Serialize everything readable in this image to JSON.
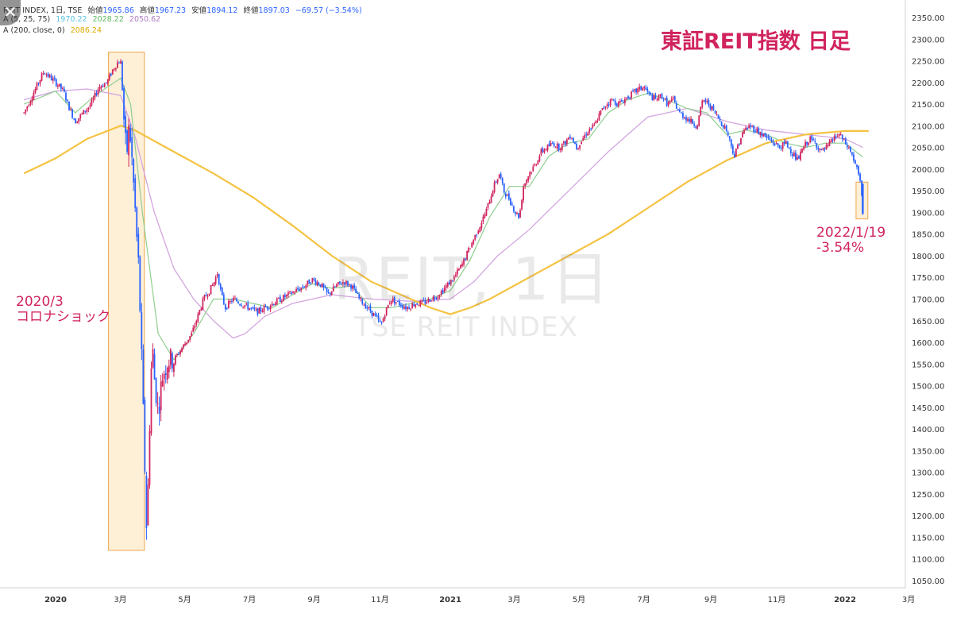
{
  "chart_data": {
    "type": "candlestick",
    "title": "東証REIT指数 日足",
    "ylim": [
      1025,
      2360
    ],
    "legend": {
      "line1": {
        "label": "REIT INDEX, 1日, TSE",
        "open_label": "始値",
        "open": "1965.86",
        "high_label": "高値",
        "high": "1967.23",
        "low_label": "安値",
        "low": "1894.12",
        "close_label": "終値",
        "close": "1897.03",
        "change": "−69.57 (−3.54%)"
      },
      "line2": {
        "label": "A (5, 25, 75)",
        "v1": "1970.22",
        "v2": "2028.22",
        "v3": "2050.62"
      },
      "line3": {
        "label": "A (200, close, 0)",
        "v1": "2086.24"
      }
    },
    "x_ticks": [
      {
        "label": "2020",
        "t": 0.0
      },
      {
        "label": "3月",
        "t": 0.164
      },
      {
        "label": "5月",
        "t": 0.327
      },
      {
        "label": "7月",
        "t": 0.491
      },
      {
        "label": "9月",
        "t": 0.655
      },
      {
        "label": "11月",
        "t": 0.822
      },
      {
        "label": "2021",
        "t": 1.0
      },
      {
        "label": "3月",
        "t": 1.162
      },
      {
        "label": "5月",
        "t": 1.326
      },
      {
        "label": "7月",
        "t": 1.49
      },
      {
        "label": "9月",
        "t": 1.66
      },
      {
        "label": "11月",
        "t": 1.827
      },
      {
        "label": "2022",
        "t": 2.0
      },
      {
        "label": "3月",
        "t": 2.161
      }
    ],
    "y_ticks": [
      1050,
      1100,
      1150,
      1200,
      1250,
      1300,
      1350,
      1400,
      1450,
      1500,
      1550,
      1600,
      1650,
      1700,
      1750,
      1800,
      1850,
      1900,
      1950,
      2000,
      2050,
      2100,
      2150,
      2200,
      2250,
      2300,
      2350
    ],
    "price_path": [
      [
        -0.08,
        2130
      ],
      [
        -0.03,
        2225
      ],
      [
        0.0,
        2200
      ],
      [
        0.02,
        2180
      ],
      [
        0.035,
        2140
      ],
      [
        0.05,
        2110
      ],
      [
        0.07,
        2130
      ],
      [
        0.09,
        2150
      ],
      [
        0.11,
        2190
      ],
      [
        0.13,
        2200
      ],
      [
        0.145,
        2230
      ],
      [
        0.16,
        2250
      ],
      [
        0.165,
        2245
      ],
      [
        0.17,
        2170
      ],
      [
        0.175,
        2080
      ],
      [
        0.18,
        2030
      ],
      [
        0.185,
        2090
      ],
      [
        0.19,
        2070
      ],
      [
        0.195,
        2000
      ],
      [
        0.2,
        1930
      ],
      [
        0.205,
        1850
      ],
      [
        0.21,
        1780
      ],
      [
        0.215,
        1650
      ],
      [
        0.22,
        1500
      ],
      [
        0.225,
        1350
      ],
      [
        0.23,
        1175
      ],
      [
        0.235,
        1280
      ],
      [
        0.24,
        1480
      ],
      [
        0.245,
        1600
      ],
      [
        0.25,
        1520
      ],
      [
        0.26,
        1440
      ],
      [
        0.27,
        1520
      ],
      [
        0.285,
        1560
      ],
      [
        0.3,
        1560
      ],
      [
        0.315,
        1580
      ],
      [
        0.33,
        1600
      ],
      [
        0.345,
        1620
      ],
      [
        0.36,
        1660
      ],
      [
        0.375,
        1700
      ],
      [
        0.39,
        1720
      ],
      [
        0.4,
        1735
      ],
      [
        0.41,
        1760
      ],
      [
        0.42,
        1710
      ],
      [
        0.43,
        1680
      ],
      [
        0.45,
        1700
      ],
      [
        0.47,
        1690
      ],
      [
        0.49,
        1680
      ],
      [
        0.51,
        1670
      ],
      [
        0.53,
        1680
      ],
      [
        0.55,
        1690
      ],
      [
        0.57,
        1700
      ],
      [
        0.59,
        1710
      ],
      [
        0.61,
        1720
      ],
      [
        0.63,
        1730
      ],
      [
        0.65,
        1745
      ],
      [
        0.67,
        1735
      ],
      [
        0.69,
        1710
      ],
      [
        0.71,
        1730
      ],
      [
        0.73,
        1740
      ],
      [
        0.75,
        1730
      ],
      [
        0.77,
        1700
      ],
      [
        0.79,
        1680
      ],
      [
        0.81,
        1660
      ],
      [
        0.825,
        1640
      ],
      [
        0.835,
        1670
      ],
      [
        0.85,
        1700
      ],
      [
        0.87,
        1690
      ],
      [
        0.89,
        1680
      ],
      [
        0.91,
        1690
      ],
      [
        0.93,
        1690
      ],
      [
        0.95,
        1700
      ],
      [
        0.97,
        1710
      ],
      [
        0.99,
        1730
      ],
      [
        1.01,
        1750
      ],
      [
        1.03,
        1780
      ],
      [
        1.05,
        1820
      ],
      [
        1.07,
        1860
      ],
      [
        1.09,
        1900
      ],
      [
        1.11,
        1960
      ],
      [
        1.125,
        1990
      ],
      [
        1.135,
        1950
      ],
      [
        1.15,
        1930
      ],
      [
        1.165,
        1900
      ],
      [
        1.175,
        1890
      ],
      [
        1.185,
        1960
      ],
      [
        1.2,
        1990
      ],
      [
        1.215,
        2010
      ],
      [
        1.23,
        2040
      ],
      [
        1.245,
        2050
      ],
      [
        1.26,
        2060
      ],
      [
        1.275,
        2050
      ],
      [
        1.29,
        2060
      ],
      [
        1.305,
        2080
      ],
      [
        1.32,
        2050
      ],
      [
        1.335,
        2070
      ],
      [
        1.35,
        2090
      ],
      [
        1.365,
        2100
      ],
      [
        1.38,
        2130
      ],
      [
        1.395,
        2150
      ],
      [
        1.41,
        2160
      ],
      [
        1.425,
        2150
      ],
      [
        1.44,
        2160
      ],
      [
        1.455,
        2170
      ],
      [
        1.47,
        2180
      ],
      [
        1.49,
        2190
      ],
      [
        1.505,
        2170
      ],
      [
        1.52,
        2160
      ],
      [
        1.535,
        2170
      ],
      [
        1.55,
        2150
      ],
      [
        1.565,
        2160
      ],
      [
        1.58,
        2130
      ],
      [
        1.595,
        2120
      ],
      [
        1.61,
        2110
      ],
      [
        1.625,
        2100
      ],
      [
        1.64,
        2160
      ],
      [
        1.655,
        2150
      ],
      [
        1.67,
        2130
      ],
      [
        1.685,
        2110
      ],
      [
        1.7,
        2090
      ],
      [
        1.71,
        2060
      ],
      [
        1.72,
        2030
      ],
      [
        1.73,
        2060
      ],
      [
        1.745,
        2090
      ],
      [
        1.76,
        2100
      ],
      [
        1.775,
        2090
      ],
      [
        1.79,
        2080
      ],
      [
        1.805,
        2070
      ],
      [
        1.82,
        2060
      ],
      [
        1.835,
        2050
      ],
      [
        1.85,
        2060
      ],
      [
        1.865,
        2040
      ],
      [
        1.88,
        2020
      ],
      [
        1.895,
        2050
      ],
      [
        1.91,
        2070
      ],
      [
        1.925,
        2060
      ],
      [
        1.94,
        2040
      ],
      [
        1.955,
        2050
      ],
      [
        1.97,
        2070
      ],
      [
        1.985,
        2080
      ],
      [
        2.0,
        2060
      ],
      [
        2.015,
        2040
      ],
      [
        2.03,
        2000
      ],
      [
        2.04,
        1966
      ],
      [
        2.045,
        1897
      ]
    ],
    "sma_200": [
      [
        -0.08,
        1990
      ],
      [
        0.0,
        2025
      ],
      [
        0.08,
        2070
      ],
      [
        0.165,
        2100
      ],
      [
        0.2,
        2090
      ],
      [
        0.3,
        2040
      ],
      [
        0.4,
        1990
      ],
      [
        0.5,
        1935
      ],
      [
        0.6,
        1870
      ],
      [
        0.7,
        1800
      ],
      [
        0.8,
        1740
      ],
      [
        0.9,
        1700
      ],
      [
        0.95,
        1680
      ],
      [
        1.0,
        1665
      ],
      [
        1.05,
        1680
      ],
      [
        1.1,
        1700
      ],
      [
        1.15,
        1725
      ],
      [
        1.2,
        1750
      ],
      [
        1.3,
        1800
      ],
      [
        1.4,
        1850
      ],
      [
        1.5,
        1910
      ],
      [
        1.6,
        1970
      ],
      [
        1.7,
        2020
      ],
      [
        1.8,
        2060
      ],
      [
        1.9,
        2080
      ],
      [
        2.0,
        2088
      ],
      [
        2.06,
        2088
      ]
    ],
    "sma_75": [
      [
        -0.08,
        2160
      ],
      [
        0.0,
        2180
      ],
      [
        0.08,
        2185
      ],
      [
        0.165,
        2170
      ],
      [
        0.2,
        2080
      ],
      [
        0.25,
        1900
      ],
      [
        0.3,
        1770
      ],
      [
        0.35,
        1700
      ],
      [
        0.4,
        1650
      ],
      [
        0.45,
        1610
      ],
      [
        0.48,
        1620
      ],
      [
        0.53,
        1660
      ],
      [
        0.6,
        1690
      ],
      [
        0.7,
        1710
      ],
      [
        0.8,
        1700
      ],
      [
        0.9,
        1695
      ],
      [
        1.0,
        1700
      ],
      [
        1.06,
        1740
      ],
      [
        1.12,
        1800
      ],
      [
        1.2,
        1860
      ],
      [
        1.3,
        1950
      ],
      [
        1.4,
        2040
      ],
      [
        1.5,
        2120
      ],
      [
        1.6,
        2140
      ],
      [
        1.7,
        2110
      ],
      [
        1.8,
        2090
      ],
      [
        1.9,
        2080
      ],
      [
        2.0,
        2070
      ],
      [
        2.045,
        2050
      ]
    ],
    "sma_25": [
      [
        -0.08,
        2150
      ],
      [
        0.0,
        2180
      ],
      [
        0.05,
        2130
      ],
      [
        0.1,
        2170
      ],
      [
        0.165,
        2210
      ],
      [
        0.19,
        2150
      ],
      [
        0.22,
        1900
      ],
      [
        0.26,
        1620
      ],
      [
        0.3,
        1560
      ],
      [
        0.35,
        1620
      ],
      [
        0.4,
        1700
      ],
      [
        0.45,
        1700
      ],
      [
        0.5,
        1690
      ],
      [
        0.55,
        1680
      ],
      [
        0.6,
        1710
      ],
      [
        0.65,
        1735
      ],
      [
        0.7,
        1725
      ],
      [
        0.75,
        1730
      ],
      [
        0.8,
        1680
      ],
      [
        0.85,
        1680
      ],
      [
        0.9,
        1690
      ],
      [
        0.95,
        1700
      ],
      [
        1.0,
        1720
      ],
      [
        1.05,
        1790
      ],
      [
        1.1,
        1890
      ],
      [
        1.15,
        1960
      ],
      [
        1.2,
        1960
      ],
      [
        1.25,
        2030
      ],
      [
        1.3,
        2060
      ],
      [
        1.35,
        2070
      ],
      [
        1.4,
        2130
      ],
      [
        1.45,
        2160
      ],
      [
        1.5,
        2175
      ],
      [
        1.55,
        2160
      ],
      [
        1.6,
        2140
      ],
      [
        1.65,
        2130
      ],
      [
        1.7,
        2080
      ],
      [
        1.75,
        2090
      ],
      [
        1.8,
        2080
      ],
      [
        1.85,
        2060
      ],
      [
        1.9,
        2050
      ],
      [
        1.95,
        2060
      ],
      [
        2.0,
        2060
      ],
      [
        2.045,
        2028
      ]
    ],
    "annotations": [
      {
        "line1": "2020/3",
        "line2": "コロナショック"
      },
      {
        "line1": "2022/1/19",
        "line2": "-3.54%"
      }
    ],
    "watermark": {
      "main": "REIT, 1日",
      "sub": "TSE REIT INDEX"
    },
    "colors": {
      "up": "#d1245e",
      "down": "#2962ff",
      "sma200": "#f5c242",
      "sma75": "#d4a5e0",
      "sma25": "#8fce8f",
      "highlight_fill": "#fde9c9",
      "highlight_stroke": "#f0a64a",
      "text_accent": "#d1245e"
    }
  }
}
